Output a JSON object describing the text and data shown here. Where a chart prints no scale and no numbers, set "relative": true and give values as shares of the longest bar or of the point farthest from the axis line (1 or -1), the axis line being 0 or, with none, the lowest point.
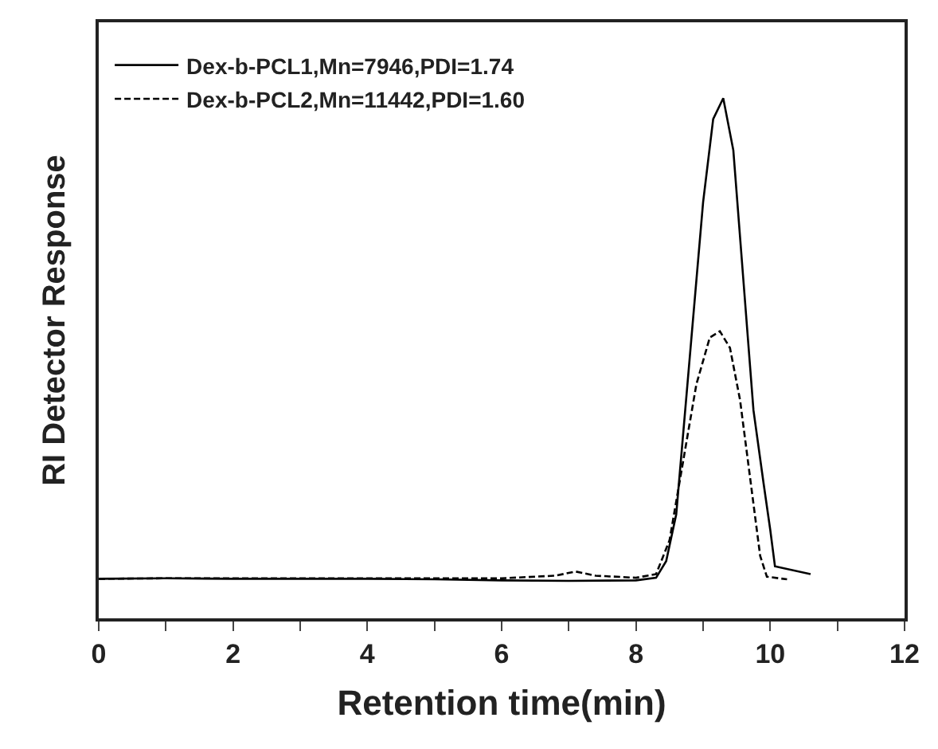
{
  "chart_data": {
    "type": "line",
    "relative": true,
    "xlabel": "Retention time(min)",
    "ylabel": "RI Detector Response",
    "xlim": [
      0,
      12
    ],
    "xticks": [
      0,
      {
        "value": 1,
        "label": null
      },
      2,
      {
        "value": 3,
        "label": null
      },
      4,
      {
        "value": 5,
        "label": null
      },
      6,
      {
        "value": 7,
        "label": null
      },
      8,
      {
        "value": 9,
        "label": null
      },
      10,
      {
        "value": 11,
        "label": null
      },
      12
    ],
    "legend": "top left",
    "marker": "none",
    "series": [
      {
        "name": "Dex-b-PCL1,Mn=7946,PDI=1.74",
        "color": "#000000",
        "line_style": "solid",
        "x": [
          0,
          1,
          2,
          3,
          4,
          5,
          6,
          7,
          8,
          8.3,
          8.45,
          8.6,
          8.8,
          9.0,
          9.15,
          9.3,
          9.45,
          9.6,
          9.75,
          9.9,
          10.0,
          10.07,
          10.6
        ],
        "values": [
          0.076,
          0.077,
          0.076,
          0.076,
          0.076,
          0.075,
          0.073,
          0.072,
          0.073,
          0.078,
          0.11,
          0.2,
          0.5,
          0.8,
          0.96,
          1.0,
          0.9,
          0.65,
          0.4,
          0.26,
          0.17,
          0.1,
          0.085
        ]
      },
      {
        "name": "Dex-b-PCL2,Mn=11442,PDI=1.60",
        "color": "#000000",
        "line_style": "dashed",
        "x": [
          0,
          1,
          2,
          3,
          4,
          5,
          6,
          6.8,
          7.1,
          7.4,
          8,
          8.3,
          8.5,
          8.7,
          8.9,
          9.1,
          9.25,
          9.4,
          9.55,
          9.7,
          9.85,
          9.95,
          10.25
        ],
        "values": [
          0.076,
          0.077,
          0.077,
          0.077,
          0.077,
          0.077,
          0.077,
          0.082,
          0.09,
          0.082,
          0.078,
          0.085,
          0.15,
          0.3,
          0.45,
          0.54,
          0.552,
          0.52,
          0.42,
          0.27,
          0.12,
          0.08,
          0.075
        ]
      }
    ]
  }
}
